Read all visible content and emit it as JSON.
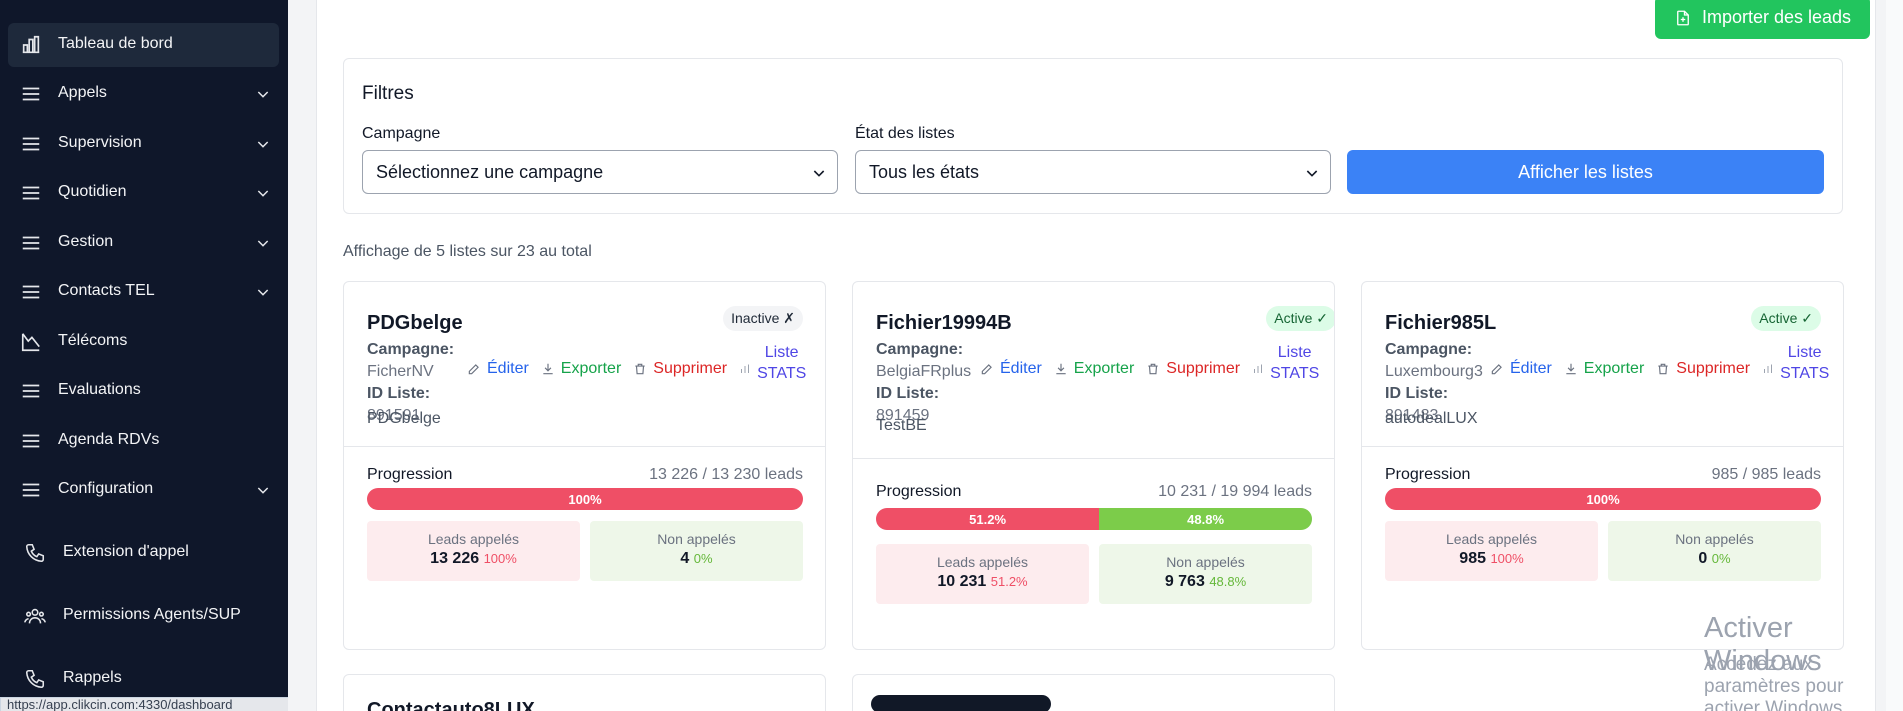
{
  "sidebar": {
    "items": [
      {
        "label": "Tableau de bord",
        "icon": "bar-chart-icon",
        "active": true,
        "chevron": false
      },
      {
        "label": "Appels",
        "icon": "menu-icon",
        "chevron": true
      },
      {
        "label": "Supervision",
        "icon": "menu-icon",
        "chevron": true
      },
      {
        "label": "Quotidien",
        "icon": "menu-icon",
        "chevron": true
      },
      {
        "label": "Gestion",
        "icon": "menu-icon",
        "chevron": true
      },
      {
        "label": "Contacts TEL",
        "icon": "menu-icon",
        "chevron": true
      },
      {
        "label": "Télécoms",
        "icon": "telecom-icon",
        "chevron": false
      },
      {
        "label": "Evaluations",
        "icon": "menu-icon",
        "chevron": false
      },
      {
        "label": "Agenda RDVs",
        "icon": "menu-icon",
        "chevron": false
      },
      {
        "label": "Configuration",
        "icon": "menu-icon",
        "chevron": true
      },
      {
        "label": "Extension d'appel",
        "icon": "phone-icon",
        "chevron": false
      },
      {
        "label": "Permissions Agents/SUP",
        "icon": "users-icon",
        "chevron": false
      },
      {
        "label": "Rappels",
        "icon": "phone-icon",
        "chevron": false
      }
    ]
  },
  "statusbar": {
    "url": "https://app.clikcin.com:4330/dashboard"
  },
  "header": {
    "import_label": "Importer des leads"
  },
  "filters": {
    "title": "Filtres",
    "campaign_label": "Campagne",
    "campaign_value": "Sélectionnez une campagne",
    "state_label": "État des listes",
    "state_value": "Tous les états",
    "show_label": "Afficher les listes"
  },
  "summary": "Affichage de 5 listes sur 23 au total",
  "labels": {
    "campaign": "Campagne:",
    "list_id": "ID Liste:",
    "edit": "Éditer",
    "export": "Exporter",
    "delete": "Supprimer",
    "stats_line1": "Liste",
    "stats_line2": "STATS",
    "progression": "Progression",
    "called": "Leads appelés",
    "not_called": "Non appelés"
  },
  "cards": [
    {
      "title": "PDGbelge",
      "status": "Inactive ✗",
      "campaign": "FicherNV",
      "list_id": "891591",
      "description": "PDGbelge",
      "progress_text": "13 226 / 13 230 leads",
      "called_pct": "100%",
      "not_called_pct_label": "",
      "called_fraction": 1.0,
      "called_count": "13 226",
      "called_pct_small": "100%",
      "not_called_count": "4",
      "not_called_pct_small": "0%"
    },
    {
      "title": "Fichier19994B",
      "status": "Active ✓",
      "campaign": "BelgiaFRplus",
      "list_id": "891459",
      "description": "TestBE",
      "progress_text": "10 231 / 19 994 leads",
      "called_pct": "51.2%",
      "not_called_pct_label": "48.8%",
      "called_fraction": 0.512,
      "called_count": "10 231",
      "called_pct_small": "51.2%",
      "not_called_count": "9 763",
      "not_called_pct_small": "48.8%"
    },
    {
      "title": "Fichier985L",
      "status": "Active ✓",
      "campaign": "Luxembourg3",
      "list_id": "891483",
      "description": "autodealLUX",
      "progress_text": "985 / 985 leads",
      "called_pct": "100%",
      "not_called_pct_label": "",
      "called_fraction": 1.0,
      "called_count": "985",
      "called_pct_small": "100%",
      "not_called_count": "0",
      "not_called_pct_small": "0%"
    }
  ],
  "partial_cards": [
    {
      "title": "Contactauto8LUX"
    }
  ],
  "watermark": {
    "line1": "Activer Windows",
    "line2": "Accédez aux paramètres pour activer Windows."
  }
}
